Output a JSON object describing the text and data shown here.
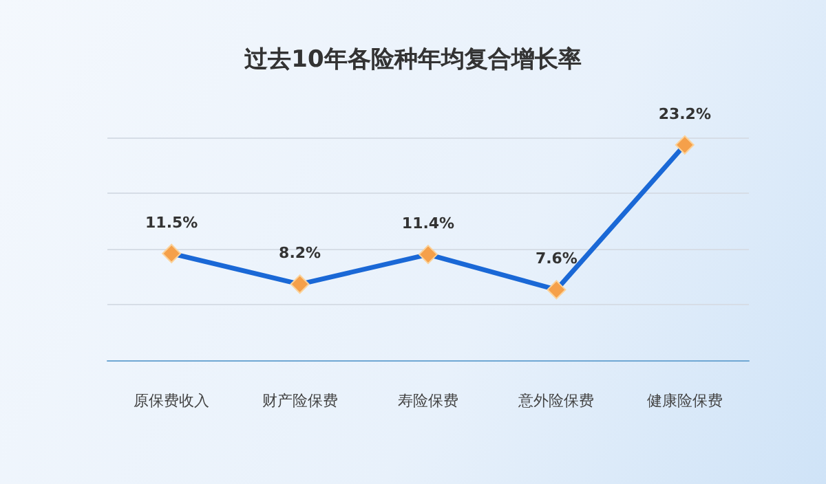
{
  "chart_data": {
    "type": "line",
    "title": "过去10年各险种年均复合增长率",
    "categories": [
      "原保费收入",
      "财产险保费",
      "寿险保费",
      "意外险保费",
      "健康险保费"
    ],
    "series": [
      {
        "color": "#1a68d6",
        "values": [
          11.5,
          8.2,
          11.4,
          7.6,
          23.2
        ],
        "value_labels": [
          "11.5%",
          "8.2%",
          "11.4%",
          "7.6%",
          "23.2%"
        ]
      }
    ],
    "ylim": [
      0,
      24
    ],
    "yticks": [
      {
        "value": 0,
        "label": null
      },
      {
        "value": 6,
        "label": null
      },
      {
        "value": 12,
        "label": null
      },
      {
        "value": 18,
        "label": null
      },
      {
        "value": 24,
        "label": null
      }
    ],
    "tick_labels": "x",
    "grid": "y",
    "marker": "diamond",
    "line_style": "solid"
  }
}
